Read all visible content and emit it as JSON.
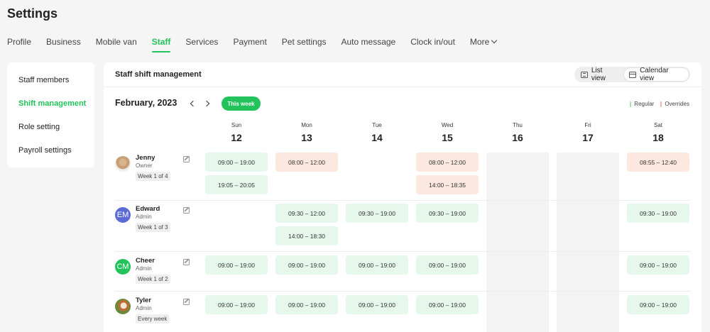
{
  "page_title": "Settings",
  "tabs": [
    {
      "label": "Profile"
    },
    {
      "label": "Business"
    },
    {
      "label": "Mobile van"
    },
    {
      "label": "Staff",
      "active": true
    },
    {
      "label": "Services"
    },
    {
      "label": "Payment"
    },
    {
      "label": "Pet settings"
    },
    {
      "label": "Auto message"
    },
    {
      "label": "Clock in/out"
    },
    {
      "label": "More"
    }
  ],
  "side_menu": [
    {
      "label": "Staff members"
    },
    {
      "label": "Shift management",
      "active": true
    },
    {
      "label": "Role setting"
    },
    {
      "label": "Payroll settings"
    }
  ],
  "panel": {
    "title": "Staff shift management",
    "list_view_label": "List view",
    "calendar_view_label": "Calendar view",
    "month_label": "February, 2023",
    "this_week_label": "This week",
    "legend": [
      {
        "label": "Regular",
        "color": "#a6e3b8"
      },
      {
        "label": "Overrides",
        "color": "#f5b9a2"
      }
    ]
  },
  "colors": {
    "accent": "#21c35a",
    "regular_bg": "#e6f8ec",
    "override_bg": "#fde8df"
  },
  "days": [
    {
      "dow": "Sun",
      "num": "12",
      "off": false
    },
    {
      "dow": "Mon",
      "num": "13",
      "off": false
    },
    {
      "dow": "Tue",
      "num": "14",
      "off": false
    },
    {
      "dow": "Wed",
      "num": "15",
      "off": false
    },
    {
      "dow": "Thu",
      "num": "16",
      "off": true
    },
    {
      "dow": "Fri",
      "num": "17",
      "off": true
    },
    {
      "dow": "Sat",
      "num": "18",
      "off": false
    }
  ],
  "staff": [
    {
      "name": "Jenny",
      "role": "Owner",
      "week": "Week 1 of 4",
      "avatar": "photo",
      "avatar_color": "#d8b48a",
      "shifts": [
        {
          "day": 0,
          "slot": 0,
          "time": "09:00 – 19:00",
          "type": "regular"
        },
        {
          "day": 0,
          "slot": 1,
          "time": "19:05 – 20:05",
          "type": "regular"
        },
        {
          "day": 1,
          "slot": 0,
          "time": "08:00 – 12:00",
          "type": "override"
        },
        {
          "day": 3,
          "slot": 0,
          "time": "08:00 – 12:00",
          "type": "override"
        },
        {
          "day": 3,
          "slot": 1,
          "time": "14:00 – 18:35",
          "type": "override"
        },
        {
          "day": 6,
          "slot": 0,
          "time": "08:55 – 12:40",
          "type": "override"
        }
      ]
    },
    {
      "name": "Edward",
      "role": "Admin",
      "week": "Week 1 of 3",
      "avatar": "EM",
      "avatar_color": "#5b6bd6",
      "shifts": [
        {
          "day": 1,
          "slot": 0,
          "time": "09:30 – 12:00",
          "type": "regular"
        },
        {
          "day": 1,
          "slot": 1,
          "time": "14:00 – 18:30",
          "type": "regular"
        },
        {
          "day": 2,
          "slot": 0,
          "time": "09:30 – 19:00",
          "type": "regular"
        },
        {
          "day": 3,
          "slot": 0,
          "time": "09:30 – 19:00",
          "type": "regular"
        },
        {
          "day": 6,
          "slot": 0,
          "time": "09:30 – 19:00",
          "type": "regular"
        }
      ]
    },
    {
      "name": "Cheer",
      "role": "Admin",
      "week": "Week 1 of 2",
      "avatar": "CM",
      "avatar_color": "#21c35a",
      "shifts": [
        {
          "day": 0,
          "slot": 0,
          "time": "09:00 – 19:00",
          "type": "regular"
        },
        {
          "day": 1,
          "slot": 0,
          "time": "09:00 – 19:00",
          "type": "regular"
        },
        {
          "day": 2,
          "slot": 0,
          "time": "09:00 – 19:00",
          "type": "regular"
        },
        {
          "day": 3,
          "slot": 0,
          "time": "09:00 – 19:00",
          "type": "regular"
        },
        {
          "day": 6,
          "slot": 0,
          "time": "09:00 – 19:00",
          "type": "regular"
        }
      ]
    },
    {
      "name": "Tyler",
      "role": "Admin",
      "week": "Every week",
      "avatar": "photo2",
      "avatar_color": "#c06a35",
      "shifts": [
        {
          "day": 0,
          "slot": 0,
          "time": "09:00 – 19:00",
          "type": "regular"
        },
        {
          "day": 1,
          "slot": 0,
          "time": "09:00 – 19:00",
          "type": "regular"
        },
        {
          "day": 2,
          "slot": 0,
          "time": "09:00 – 19:00",
          "type": "regular"
        },
        {
          "day": 3,
          "slot": 0,
          "time": "09:00 – 19:00",
          "type": "regular"
        },
        {
          "day": 6,
          "slot": 0,
          "time": "09:00 – 19:00",
          "type": "regular"
        }
      ]
    }
  ]
}
